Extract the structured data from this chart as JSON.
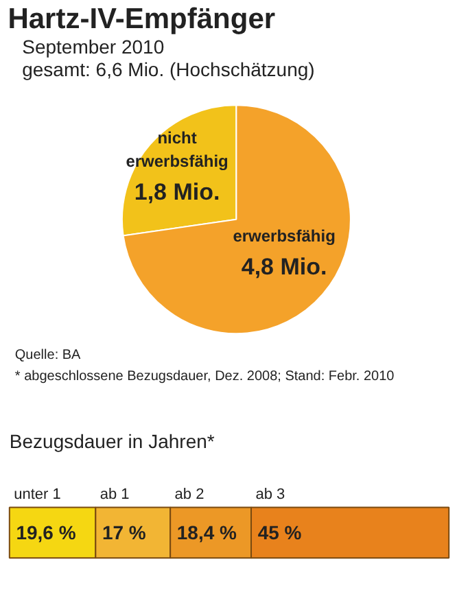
{
  "chart_data": [
    {
      "type": "pie",
      "title": "Hartz-IV-Empfänger",
      "subtitle": "September 2010",
      "categories": [
        "nicht erwerbsfähig",
        "erwerbsfähig"
      ],
      "values": [
        1.8,
        4.8
      ],
      "value_labels": [
        "1,8 Mio.",
        "4,8 Mio."
      ],
      "colors": [
        "#f2c21a",
        "#f4a22a"
      ],
      "annotations": [
        "gesamt: 6,6 Mio. (Hochschätzung)",
        "Quelle: BA",
        "* abgeschlossene Bezugsdauer, Dez. 2008; Stand: Febr. 2010"
      ]
    },
    {
      "type": "bar",
      "orientation": "horizontal",
      "stacked": true,
      "title": "Bezugsdauer in Jahren*",
      "categories": [
        null
      ],
      "series": [
        {
          "name": "unter 1",
          "color": "#f5d712",
          "values": [
            19.6
          ],
          "value_labels": [
            "19,6 %"
          ]
        },
        {
          "name": "ab 1",
          "color": "#f2b534",
          "values": [
            17
          ],
          "value_labels": [
            "17 %"
          ]
        },
        {
          "name": "ab 2",
          "color": "#ec9826",
          "values": [
            18.4
          ],
          "value_labels": [
            "18,4 %"
          ]
        },
        {
          "name": "ab 3",
          "color": "#e8821c",
          "values": [
            45
          ],
          "value_labels": [
            "45 %"
          ]
        }
      ]
    }
  ]
}
